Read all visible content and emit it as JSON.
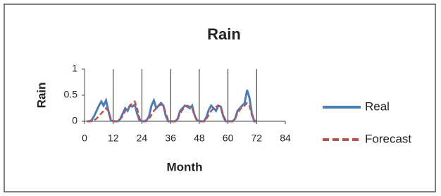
{
  "chart_data": {
    "type": "line",
    "title": "Rain",
    "x_label": "Month",
    "y_label": "Rain",
    "x": [
      1,
      2,
      3,
      4,
      5,
      6,
      7,
      8,
      9,
      10,
      11,
      12,
      13,
      14,
      15,
      16,
      17,
      18,
      19,
      20,
      21,
      22,
      23,
      24,
      25,
      26,
      27,
      28,
      29,
      30,
      31,
      32,
      33,
      34,
      35,
      36,
      37,
      38,
      39,
      40,
      41,
      42,
      43,
      44,
      45,
      46,
      47,
      48,
      49,
      50,
      51,
      52,
      53,
      54,
      55,
      56,
      57,
      58,
      59,
      60,
      61,
      62,
      63,
      64,
      65,
      66,
      67,
      68,
      69,
      70,
      71,
      72
    ],
    "series": [
      {
        "name": "Real",
        "color": "#4a7ebb",
        "dashed": false,
        "values": [
          0,
          0,
          0.02,
          0.1,
          0.2,
          0.3,
          0.38,
          0.3,
          0.4,
          0.2,
          0.02,
          0,
          0,
          0,
          0.05,
          0.15,
          0.25,
          0.2,
          0.3,
          0.28,
          0.32,
          0.15,
          0.02,
          0,
          0,
          0.02,
          0.1,
          0.3,
          0.4,
          0.25,
          0.3,
          0.35,
          0.3,
          0.1,
          0,
          0,
          0,
          0,
          0.05,
          0.2,
          0.25,
          0.3,
          0.28,
          0.25,
          0.3,
          0.12,
          0.02,
          0,
          0,
          0,
          0.08,
          0.22,
          0.3,
          0.25,
          0.2,
          0.3,
          0.28,
          0.1,
          0,
          0,
          0,
          0,
          0.05,
          0.2,
          0.25,
          0.3,
          0.35,
          0.6,
          0.45,
          0.15,
          0,
          0
        ]
      },
      {
        "name": "Forecast",
        "color": "#c0504d",
        "dashed": true,
        "values": [
          0,
          0,
          0,
          0.02,
          0.05,
          0.1,
          0.15,
          0.2,
          0.25,
          0.2,
          0.05,
          0,
          0,
          0,
          0.05,
          0.1,
          0.2,
          0.25,
          0.3,
          0.35,
          0.38,
          0.25,
          0.05,
          0,
          0,
          0,
          0.05,
          0.12,
          0.2,
          0.25,
          0.3,
          0.32,
          0.3,
          0.15,
          0.02,
          0,
          0,
          0,
          0.05,
          0.15,
          0.22,
          0.28,
          0.3,
          0.28,
          0.25,
          0.12,
          0.02,
          0,
          0,
          0,
          0.05,
          0.12,
          0.2,
          0.25,
          0.28,
          0.3,
          0.28,
          0.12,
          0.02,
          0,
          0,
          0,
          0.05,
          0.15,
          0.22,
          0.28,
          0.3,
          0.35,
          0.3,
          0.12,
          0.02,
          0
        ]
      }
    ],
    "xlim": [
      0,
      84
    ],
    "xticks": [
      0,
      12,
      24,
      36,
      48,
      60,
      72,
      84
    ],
    "ylim": [
      0,
      1
    ],
    "yticks": [
      0,
      0.5,
      1
    ],
    "grid_x": true
  }
}
